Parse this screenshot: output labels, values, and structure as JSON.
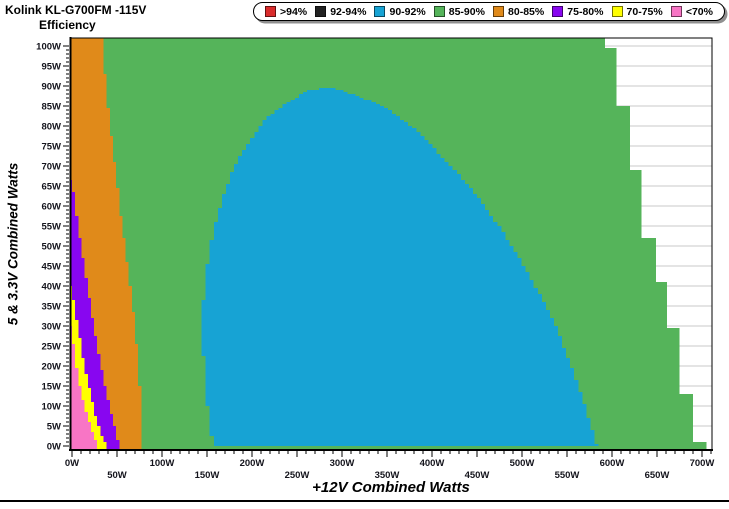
{
  "header": {
    "title": "Kolink KL-G700FM -115V",
    "subtitle": "Efficiency"
  },
  "chart_data": {
    "type": "heatmap",
    "title": "Kolink KL-G700FM -115V Efficiency",
    "xlabel": "+12V Combined Watts",
    "ylabel": "5 & 3.3V Combined Watts",
    "xlim": [
      0,
      711
    ],
    "ylim": [
      0,
      102
    ],
    "x_minor_step": 10,
    "y_minor_step": 1,
    "grid": {
      "horizontal_step": 5,
      "color": "#c9c9c9"
    },
    "x_ticks": [
      {
        "v": 0,
        "label": "0W"
      },
      {
        "v": 50,
        "label": "50W"
      },
      {
        "v": 100,
        "label": "100W"
      },
      {
        "v": 150,
        "label": "150W"
      },
      {
        "v": 200,
        "label": "200W"
      },
      {
        "v": 250,
        "label": "250W"
      },
      {
        "v": 300,
        "label": "300W"
      },
      {
        "v": 350,
        "label": "350W"
      },
      {
        "v": 400,
        "label": "400W"
      },
      {
        "v": 450,
        "label": "450W"
      },
      {
        "v": 500,
        "label": "500W"
      },
      {
        "v": 550,
        "label": "550W"
      },
      {
        "v": 600,
        "label": "600W"
      },
      {
        "v": 650,
        "label": "650W"
      },
      {
        "v": 700,
        "label": "700W"
      }
    ],
    "y_ticks": [
      {
        "v": 0,
        "label": "0W"
      },
      {
        "v": 5,
        "label": "5W"
      },
      {
        "v": 10,
        "label": "10W"
      },
      {
        "v": 15,
        "label": "15W"
      },
      {
        "v": 20,
        "label": "20W"
      },
      {
        "v": 25,
        "label": "25W"
      },
      {
        "v": 30,
        "label": "30W"
      },
      {
        "v": 35,
        "label": "35W"
      },
      {
        "v": 40,
        "label": "40W"
      },
      {
        "v": 45,
        "label": "45W"
      },
      {
        "v": 50,
        "label": "50W"
      },
      {
        "v": 55,
        "label": "55W"
      },
      {
        "v": 60,
        "label": "60W"
      },
      {
        "v": 65,
        "label": "65W"
      },
      {
        "v": 70,
        "label": "70W"
      },
      {
        "v": 75,
        "label": "75W"
      },
      {
        "v": 80,
        "label": "80W"
      },
      {
        "v": 85,
        "label": "85W"
      },
      {
        "v": 90,
        "label": "90W"
      },
      {
        "v": 95,
        "label": "95W"
      },
      {
        "v": 100,
        "label": "100W"
      }
    ],
    "legend": {
      "position": "top",
      "items": [
        {
          "label": ">94%",
          "color": "#da2c2c"
        },
        {
          "label": "92-94%",
          "color": "#222222"
        },
        {
          "label": "90-92%",
          "color": "#17a3d4"
        },
        {
          "label": "85-90%",
          "color": "#55b45a"
        },
        {
          "label": "80-85%",
          "color": "#e08a1a"
        },
        {
          "label": "75-80%",
          "color": "#8806f0"
        },
        {
          "label": "70-75%",
          "color": "#ffff00"
        },
        {
          "label": "<70%",
          "color": "#f875c5"
        }
      ]
    },
    "regions": [
      {
        "name": "85-90%",
        "color": "#55b45a",
        "kind": "steps",
        "points": [
          [
            592,
            103
          ],
          [
            592,
            99.5
          ],
          [
            605,
            99.5
          ],
          [
            605,
            85
          ],
          [
            620,
            85
          ],
          [
            620,
            69
          ],
          [
            633,
            69
          ],
          [
            633,
            52
          ],
          [
            649,
            52
          ],
          [
            649,
            41
          ],
          [
            661,
            41
          ],
          [
            661,
            29.5
          ],
          [
            675,
            29.5
          ],
          [
            675,
            13
          ],
          [
            690,
            13
          ],
          [
            690,
            1
          ],
          [
            705,
            1
          ],
          [
            705,
            0
          ]
        ]
      },
      {
        "name": "80-85%",
        "color": "#e08a1a",
        "kind": "band",
        "boundary": [
          [
            34,
            103
          ],
          [
            36,
            95
          ],
          [
            39,
            87
          ],
          [
            43,
            79
          ],
          [
            48,
            70
          ],
          [
            53,
            60
          ],
          [
            59,
            50
          ],
          [
            65,
            40
          ],
          [
            70,
            30
          ],
          [
            74,
            20
          ],
          [
            77,
            9
          ],
          [
            78,
            0
          ]
        ]
      },
      {
        "name": "75-80%",
        "color": "#8806f0",
        "kind": "band",
        "boundary": [
          [
            0,
            66.5
          ],
          [
            5,
            58
          ],
          [
            10,
            50
          ],
          [
            16,
            42
          ],
          [
            22,
            33
          ],
          [
            29,
            24
          ],
          [
            37,
            15
          ],
          [
            45,
            7
          ],
          [
            53,
            0
          ]
        ]
      },
      {
        "name": "70-75%",
        "color": "#ffff00",
        "kind": "band",
        "boundary": [
          [
            0,
            40
          ],
          [
            4,
            33
          ],
          [
            9,
            27
          ],
          [
            14,
            20
          ],
          [
            20,
            14
          ],
          [
            27,
            7
          ],
          [
            33,
            3
          ],
          [
            39,
            0
          ]
        ]
      },
      {
        "name": "<70%",
        "color": "#f875c5",
        "kind": "band",
        "boundary": [
          [
            0,
            30
          ],
          [
            2,
            25
          ],
          [
            5,
            20
          ],
          [
            9,
            15
          ],
          [
            14,
            10
          ],
          [
            21,
            5
          ],
          [
            29,
            0
          ]
        ]
      },
      {
        "name": "90-92%",
        "color": "#17a3d4",
        "kind": "dome",
        "left": [
          [
            287,
            90
          ],
          [
            262,
            89
          ],
          [
            238,
            86
          ],
          [
            215,
            82
          ],
          [
            196,
            76
          ],
          [
            180,
            70
          ],
          [
            167,
            62
          ],
          [
            157,
            54
          ],
          [
            150,
            45
          ],
          [
            146,
            36
          ],
          [
            145,
            28
          ],
          [
            148,
            15
          ],
          [
            152,
            8
          ],
          [
            157,
            0
          ]
        ],
        "right": [
          [
            287,
            90
          ],
          [
            315,
            88
          ],
          [
            348,
            85
          ],
          [
            378,
            80
          ],
          [
            405,
            74
          ],
          [
            430,
            68
          ],
          [
            453,
            62
          ],
          [
            478,
            54
          ],
          [
            500,
            46
          ],
          [
            520,
            38
          ],
          [
            538,
            30
          ],
          [
            555,
            20
          ],
          [
            570,
            10
          ],
          [
            584,
            0
          ]
        ]
      }
    ]
  }
}
